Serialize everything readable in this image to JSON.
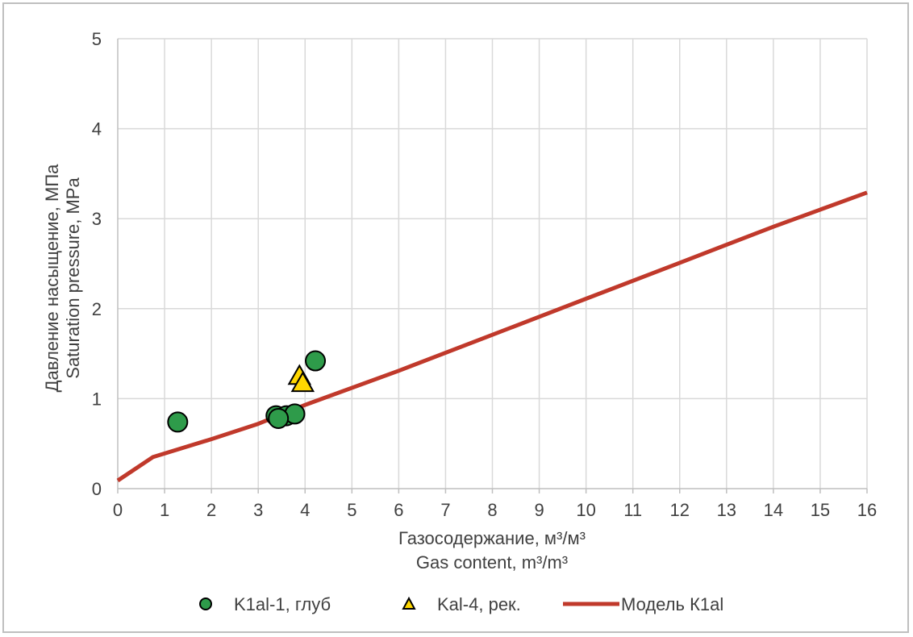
{
  "chart_data": {
    "type": "scatter",
    "x_axis": {
      "label_ru": "Газосодержание, м³/м³",
      "label_en": "Gas content, m³/m³",
      "range": [
        0,
        16
      ],
      "ticks": [
        0,
        1,
        2,
        3,
        4,
        5,
        6,
        7,
        8,
        9,
        10,
        11,
        12,
        13,
        14,
        15,
        16
      ]
    },
    "y_axis": {
      "label_ru": "Давление насыщение, МПа",
      "label_en": "Saturation pressure, MPa",
      "range": [
        0,
        5
      ],
      "ticks": [
        0,
        1,
        2,
        3,
        4,
        5
      ]
    },
    "grid": true,
    "legend_position": "bottom",
    "series": [
      {
        "name": "K1al-1, глуб",
        "kind": "scatter",
        "marker": "circle",
        "color": "#2e9b4a",
        "points": [
          {
            "x": 1.28,
            "y": 0.74
          },
          {
            "x": 3.38,
            "y": 0.81
          },
          {
            "x": 3.6,
            "y": 0.81
          },
          {
            "x": 3.78,
            "y": 0.83
          },
          {
            "x": 3.43,
            "y": 0.78
          },
          {
            "x": 4.22,
            "y": 1.42
          }
        ]
      },
      {
        "name": "Kal-4, рек.",
        "kind": "scatter",
        "marker": "triangle",
        "color": "#ffd700",
        "points": [
          {
            "x": 3.88,
            "y": 1.25
          },
          {
            "x": 3.95,
            "y": 1.17
          }
        ]
      },
      {
        "name": "Модель К1al",
        "kind": "line",
        "color": "#c0392b",
        "points": [
          {
            "x": 0.0,
            "y": 0.09
          },
          {
            "x": 0.75,
            "y": 0.35
          },
          {
            "x": 2.0,
            "y": 0.55
          },
          {
            "x": 3.0,
            "y": 0.72
          },
          {
            "x": 4.0,
            "y": 0.93
          },
          {
            "x": 6.0,
            "y": 1.31
          },
          {
            "x": 8.0,
            "y": 1.71
          },
          {
            "x": 10.0,
            "y": 2.11
          },
          {
            "x": 12.0,
            "y": 2.51
          },
          {
            "x": 14.0,
            "y": 2.91
          },
          {
            "x": 16.0,
            "y": 3.29
          }
        ]
      }
    ]
  },
  "colors": {
    "grid": "#d9d9d9",
    "axis": "#bfbfbf",
    "text": "#404040",
    "marker_stroke": "#000000"
  }
}
